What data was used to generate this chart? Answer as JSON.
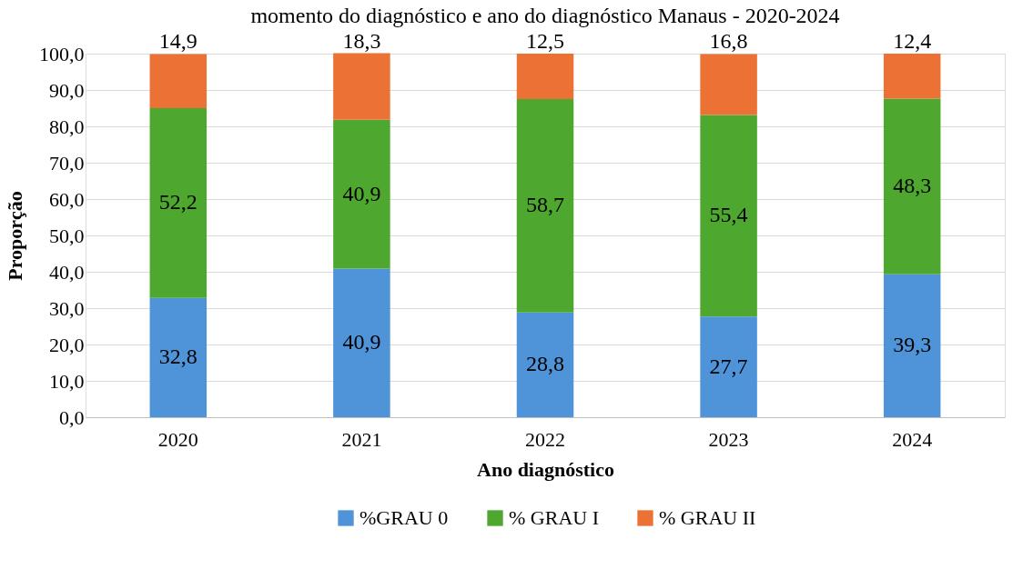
{
  "chart_data": {
    "type": "bar",
    "title": "momento do diagnóstico e ano do diagnóstico Manaus - 2020-2024",
    "xlabel": "Ano diagnóstico",
    "ylabel": "Proporção",
    "categories": [
      "2020",
      "2021",
      "2022",
      "2023",
      "2024"
    ],
    "stacked": true,
    "series": [
      {
        "name": "%GRAU 0",
        "color": "#4f93d8",
        "values": [
          32.8,
          40.9,
          28.8,
          27.7,
          39.3
        ],
        "value_labels": [
          "32,8",
          "40,9",
          "28,8",
          "27,7",
          "39,3"
        ]
      },
      {
        "name": "% GRAU I",
        "color": "#4ea72e",
        "values": [
          52.2,
          40.9,
          58.7,
          55.4,
          48.3
        ],
        "value_labels": [
          "52,2",
          "40,9",
          "58,7",
          "55,4",
          "48,3"
        ]
      },
      {
        "name": "% GRAU II",
        "color": "#eb7134",
        "values": [
          14.9,
          18.3,
          12.5,
          16.8,
          12.4
        ],
        "value_labels": [
          "14,9",
          "18,3",
          "12,5",
          "16,8",
          "12,4"
        ]
      }
    ],
    "ylim": [
      0,
      100
    ],
    "yticks": [
      {
        "value": 0,
        "label": "0,0"
      },
      {
        "value": 10,
        "label": "10,0"
      },
      {
        "value": 20,
        "label": "20,0"
      },
      {
        "value": 30,
        "label": "30,0"
      },
      {
        "value": 40,
        "label": "40,0"
      },
      {
        "value": 50,
        "label": "50,0"
      },
      {
        "value": 60,
        "label": "60,0"
      },
      {
        "value": 70,
        "label": "70,0"
      },
      {
        "value": 80,
        "label": "80,0"
      },
      {
        "value": 90,
        "label": "90,0"
      },
      {
        "value": 100,
        "label": "100,0"
      }
    ],
    "grid": "y",
    "legend": "bottom"
  }
}
